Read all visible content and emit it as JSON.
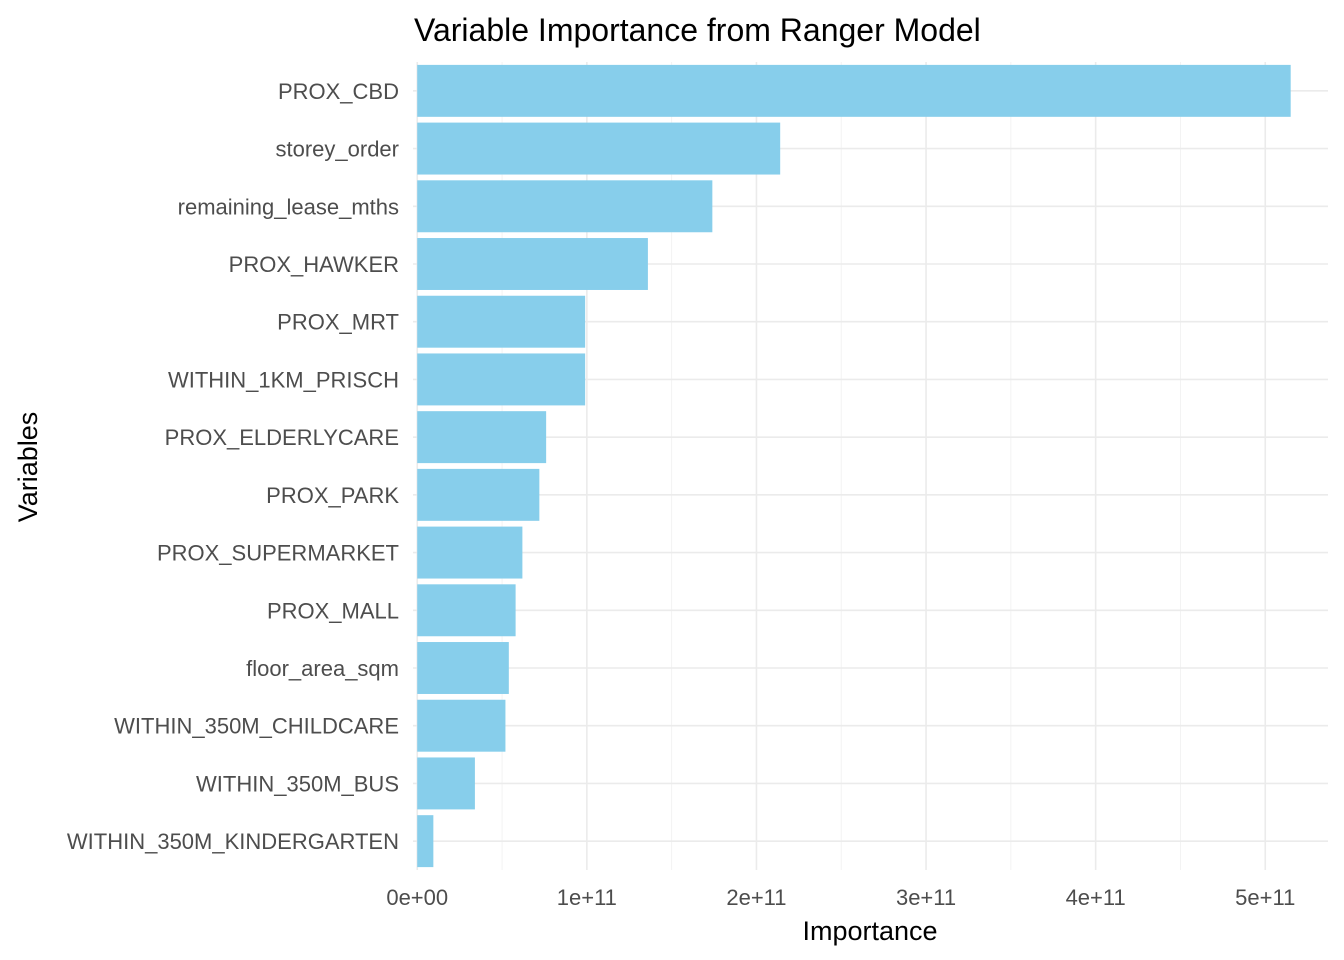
{
  "chart_data": {
    "type": "bar",
    "orientation": "horizontal",
    "title": "Variable Importance from Ranger Model",
    "xlabel": "Importance",
    "ylabel": "Variables",
    "categories": [
      "PROX_CBD",
      "storey_order",
      "remaining_lease_mths",
      "PROX_HAWKER",
      "PROX_MRT",
      "WITHIN_1KM_PRISCH",
      "PROX_ELDERLYCARE",
      "PROX_PARK",
      "PROX_SUPERMARKET",
      "PROX_MALL",
      "floor_area_sqm",
      "WITHIN_350M_CHILDCARE",
      "WITHIN_350M_BUS",
      "WITHIN_350M_KINDERGARTEN"
    ],
    "values": [
      515000000000,
      214000000000,
      174000000000,
      136000000000,
      99000000000,
      99000000000,
      76000000000,
      72000000000,
      62000000000,
      58000000000,
      54000000000,
      52000000000,
      34000000000,
      9500000000
    ],
    "xlim": [
      -2500000000,
      537000000000
    ],
    "xticks": [
      0,
      100000000000,
      200000000000,
      300000000000,
      400000000000,
      500000000000
    ],
    "xtick_labels": [
      "0e+00",
      "1e+11",
      "2e+11",
      "3e+11",
      "4e+11",
      "5e+11"
    ],
    "bar_color": "#87ceeb",
    "grid": true,
    "legend": "none"
  }
}
